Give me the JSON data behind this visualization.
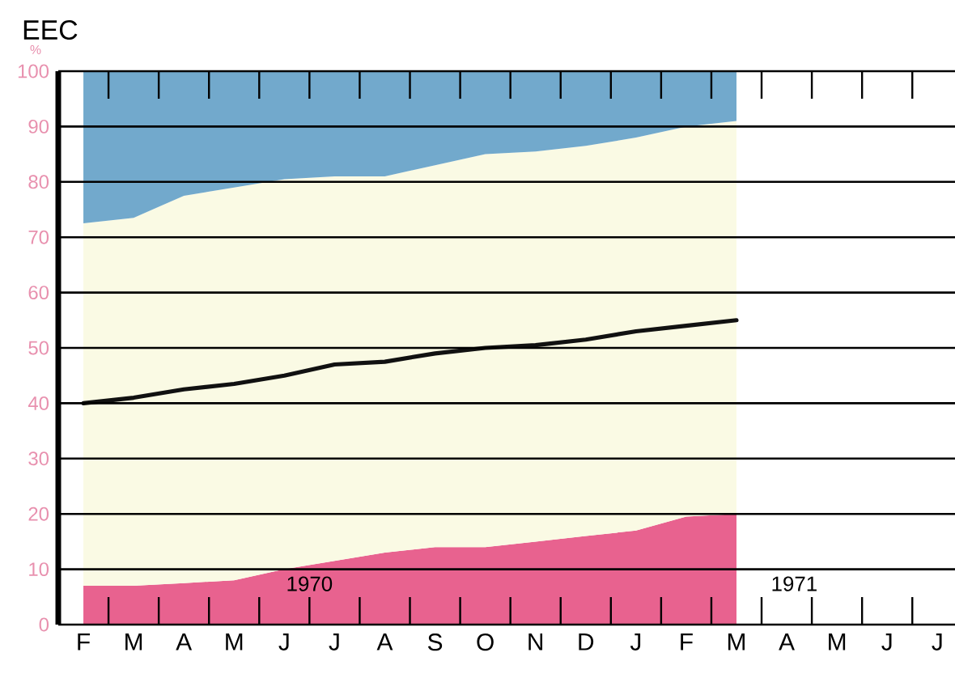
{
  "chart_data": {
    "type": "area",
    "stacked": true,
    "title": "EEC",
    "ylabel": "%",
    "categories": [
      "F",
      "M",
      "A",
      "M",
      "J",
      "J",
      "A",
      "S",
      "O",
      "N",
      "D",
      "J",
      "F",
      "M",
      "A",
      "M",
      "J",
      "J"
    ],
    "series": [
      {
        "color": "#e8628f",
        "values": [
          7,
          7,
          7.5,
          8,
          10,
          11.5,
          13,
          14,
          14,
          15,
          16,
          17,
          19.5,
          20,
          null,
          null,
          null,
          null
        ]
      },
      {
        "color": "#fafae4",
        "values": [
          65.5,
          66.5,
          70,
          71,
          70.5,
          69.5,
          68,
          69,
          71,
          70.5,
          70.5,
          71,
          70.5,
          71,
          null,
          null,
          null,
          null
        ]
      },
      {
        "color": "#72a9cc",
        "values": [
          27.5,
          26.5,
          22.5,
          21,
          19.5,
          19,
          19,
          17,
          15,
          14.5,
          13.5,
          12,
          10,
          9,
          null,
          null,
          null,
          null
        ]
      },
      {
        "type": "line",
        "color": "#111111",
        "values": [
          40,
          41,
          42.5,
          43.5,
          45,
          47,
          47.5,
          49,
          50,
          50.5,
          51.5,
          53,
          54,
          55,
          null,
          null,
          null,
          null
        ]
      }
    ],
    "ylim": [
      0,
      100
    ],
    "yticks": [
      0,
      10,
      20,
      30,
      40,
      50,
      60,
      70,
      80,
      90,
      100
    ],
    "grid": "y",
    "annotations": [
      "1970",
      "1971"
    ]
  }
}
